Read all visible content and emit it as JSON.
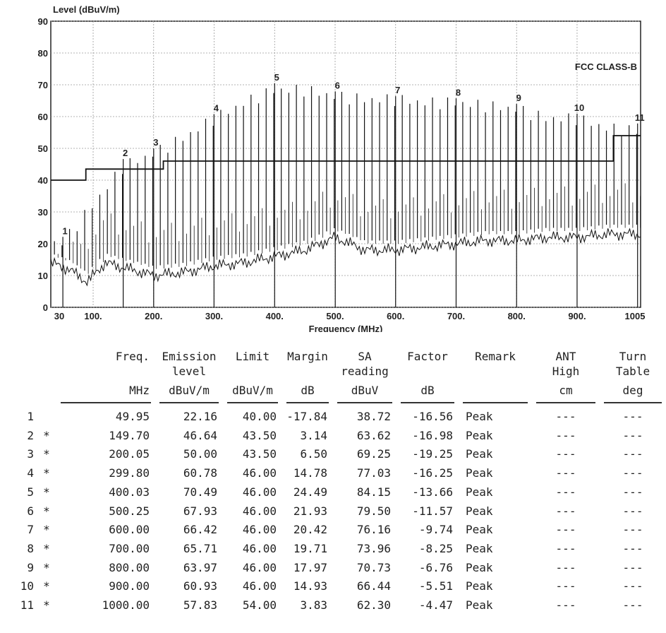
{
  "chart_data": {
    "type": "line",
    "title": "",
    "ylabel": "Level (dBuV/m)",
    "xlabel": "Frequency (MHz)",
    "ylim": [
      0,
      90
    ],
    "xlim": [
      30,
      1005
    ],
    "grid": true,
    "yticks": [
      "0",
      "10",
      "20",
      "30",
      "40",
      "50",
      "60",
      "70",
      "80",
      "90"
    ],
    "xticks": [
      {
        "label": "30",
        "value": 30
      },
      {
        "label": "100.",
        "value": 100
      },
      {
        "label": "200.",
        "value": 200
      },
      {
        "label": "300.",
        "value": 300
      },
      {
        "label": "400.",
        "value": 400
      },
      {
        "label": "500.",
        "value": 500
      },
      {
        "label": "600.",
        "value": 600
      },
      {
        "label": "700.",
        "value": 700
      },
      {
        "label": "800.",
        "value": 800
      },
      {
        "label": "900.",
        "value": 900
      },
      {
        "label": "1005",
        "value": 1005
      }
    ],
    "limit_line": {
      "name": "FCC CLASS-B",
      "segments": [
        {
          "x": [
            30,
            88
          ],
          "y": 40.0
        },
        {
          "x": [
            88,
            216
          ],
          "y": 43.5
        },
        {
          "x": [
            216,
            960
          ],
          "y": 46.0
        },
        {
          "x": [
            960,
            1005
          ],
          "y": 54.0
        }
      ]
    },
    "noise_floor": {
      "x": [
        30,
        60,
        90,
        120,
        160,
        200,
        250,
        300,
        350,
        400,
        450,
        500,
        550,
        600,
        650,
        700,
        750,
        800,
        850,
        900,
        950,
        1005
      ],
      "y": [
        14,
        12,
        8,
        14,
        12,
        10,
        11,
        13,
        14,
        16,
        18,
        22,
        18,
        18,
        19,
        20,
        21,
        21,
        22,
        22,
        23,
        23
      ]
    },
    "peak_envelope": {
      "x": [
        30,
        50,
        100,
        150,
        200,
        250,
        300,
        350,
        400,
        450,
        500,
        550,
        600,
        650,
        700,
        750,
        800,
        850,
        900,
        950,
        1000,
        1005
      ],
      "y": [
        22,
        22,
        34,
        46,
        50,
        55,
        61,
        66,
        70,
        70,
        68,
        67,
        67,
        66,
        66,
        65,
        64,
        61,
        61,
        58,
        57,
        57
      ]
    },
    "markers": [
      {
        "label": "1",
        "x": 49.95,
        "y": 22.16
      },
      {
        "label": "2",
        "x": 149.7,
        "y": 46.64
      },
      {
        "label": "3",
        "x": 200.05,
        "y": 50.0
      },
      {
        "label": "4",
        "x": 299.8,
        "y": 60.78
      },
      {
        "label": "5",
        "x": 400.03,
        "y": 70.49
      },
      {
        "label": "6",
        "x": 500.25,
        "y": 67.93
      },
      {
        "label": "7",
        "x": 600.0,
        "y": 66.42
      },
      {
        "label": "8",
        "x": 700.0,
        "y": 65.71
      },
      {
        "label": "9",
        "x": 800.0,
        "y": 63.97
      },
      {
        "label": "10",
        "x": 900.0,
        "y": 60.93
      },
      {
        "label": "11",
        "x": 1000.0,
        "y": 57.83
      }
    ]
  },
  "table": {
    "headers": {
      "freq": "Freq.",
      "freq_unit": "MHz",
      "emission": "Emission\nlevel",
      "emission_unit": "dBuV/m",
      "limit": "Limit",
      "limit_unit": "dBuV/m",
      "margin": "Margin",
      "margin_unit": "dB",
      "sa": "SA\nreading",
      "sa_unit": "dBuV",
      "factor": "Factor",
      "factor_unit": "dB",
      "remark": "Remark",
      "ant": "ANT\nHigh",
      "ant_unit": "cm",
      "turn": "Turn\nTable",
      "turn_unit": "deg"
    },
    "rows": [
      {
        "no": "1",
        "mark": "",
        "freq": "49.95",
        "emission": "22.16",
        "limit": "40.00",
        "margin": "-17.84",
        "sa": "38.72",
        "factor": "-16.56",
        "remark": "Peak",
        "ant": "---",
        "turn": "---"
      },
      {
        "no": "2",
        "mark": "*",
        "freq": "149.70",
        "emission": "46.64",
        "limit": "43.50",
        "margin": "3.14",
        "sa": "63.62",
        "factor": "-16.98",
        "remark": "Peak",
        "ant": "---",
        "turn": "---"
      },
      {
        "no": "3",
        "mark": "*",
        "freq": "200.05",
        "emission": "50.00",
        "limit": "43.50",
        "margin": "6.50",
        "sa": "69.25",
        "factor": "-19.25",
        "remark": "Peak",
        "ant": "---",
        "turn": "---"
      },
      {
        "no": "4",
        "mark": "*",
        "freq": "299.80",
        "emission": "60.78",
        "limit": "46.00",
        "margin": "14.78",
        "sa": "77.03",
        "factor": "-16.25",
        "remark": "Peak",
        "ant": "---",
        "turn": "---"
      },
      {
        "no": "5",
        "mark": "*",
        "freq": "400.03",
        "emission": "70.49",
        "limit": "46.00",
        "margin": "24.49",
        "sa": "84.15",
        "factor": "-13.66",
        "remark": "Peak",
        "ant": "---",
        "turn": "---"
      },
      {
        "no": "6",
        "mark": "*",
        "freq": "500.25",
        "emission": "67.93",
        "limit": "46.00",
        "margin": "21.93",
        "sa": "79.50",
        "factor": "-11.57",
        "remark": "Peak",
        "ant": "---",
        "turn": "---"
      },
      {
        "no": "7",
        "mark": "*",
        "freq": "600.00",
        "emission": "66.42",
        "limit": "46.00",
        "margin": "20.42",
        "sa": "76.16",
        "factor": "-9.74",
        "remark": "Peak",
        "ant": "---",
        "turn": "---"
      },
      {
        "no": "8",
        "mark": "*",
        "freq": "700.00",
        "emission": "65.71",
        "limit": "46.00",
        "margin": "19.71",
        "sa": "73.96",
        "factor": "-8.25",
        "remark": "Peak",
        "ant": "---",
        "turn": "---"
      },
      {
        "no": "9",
        "mark": "*",
        "freq": "800.00",
        "emission": "63.97",
        "limit": "46.00",
        "margin": "17.97",
        "sa": "70.73",
        "factor": "-6.76",
        "remark": "Peak",
        "ant": "---",
        "turn": "---"
      },
      {
        "no": "10",
        "mark": "*",
        "freq": "900.00",
        "emission": "60.93",
        "limit": "46.00",
        "margin": "14.93",
        "sa": "66.44",
        "factor": "-5.51",
        "remark": "Peak",
        "ant": "---",
        "turn": "---"
      },
      {
        "no": "11",
        "mark": "*",
        "freq": "1000.00",
        "emission": "57.83",
        "limit": "54.00",
        "margin": "3.83",
        "sa": "62.30",
        "factor": "-4.47",
        "remark": "Peak",
        "ant": "---",
        "turn": "---"
      }
    ]
  }
}
